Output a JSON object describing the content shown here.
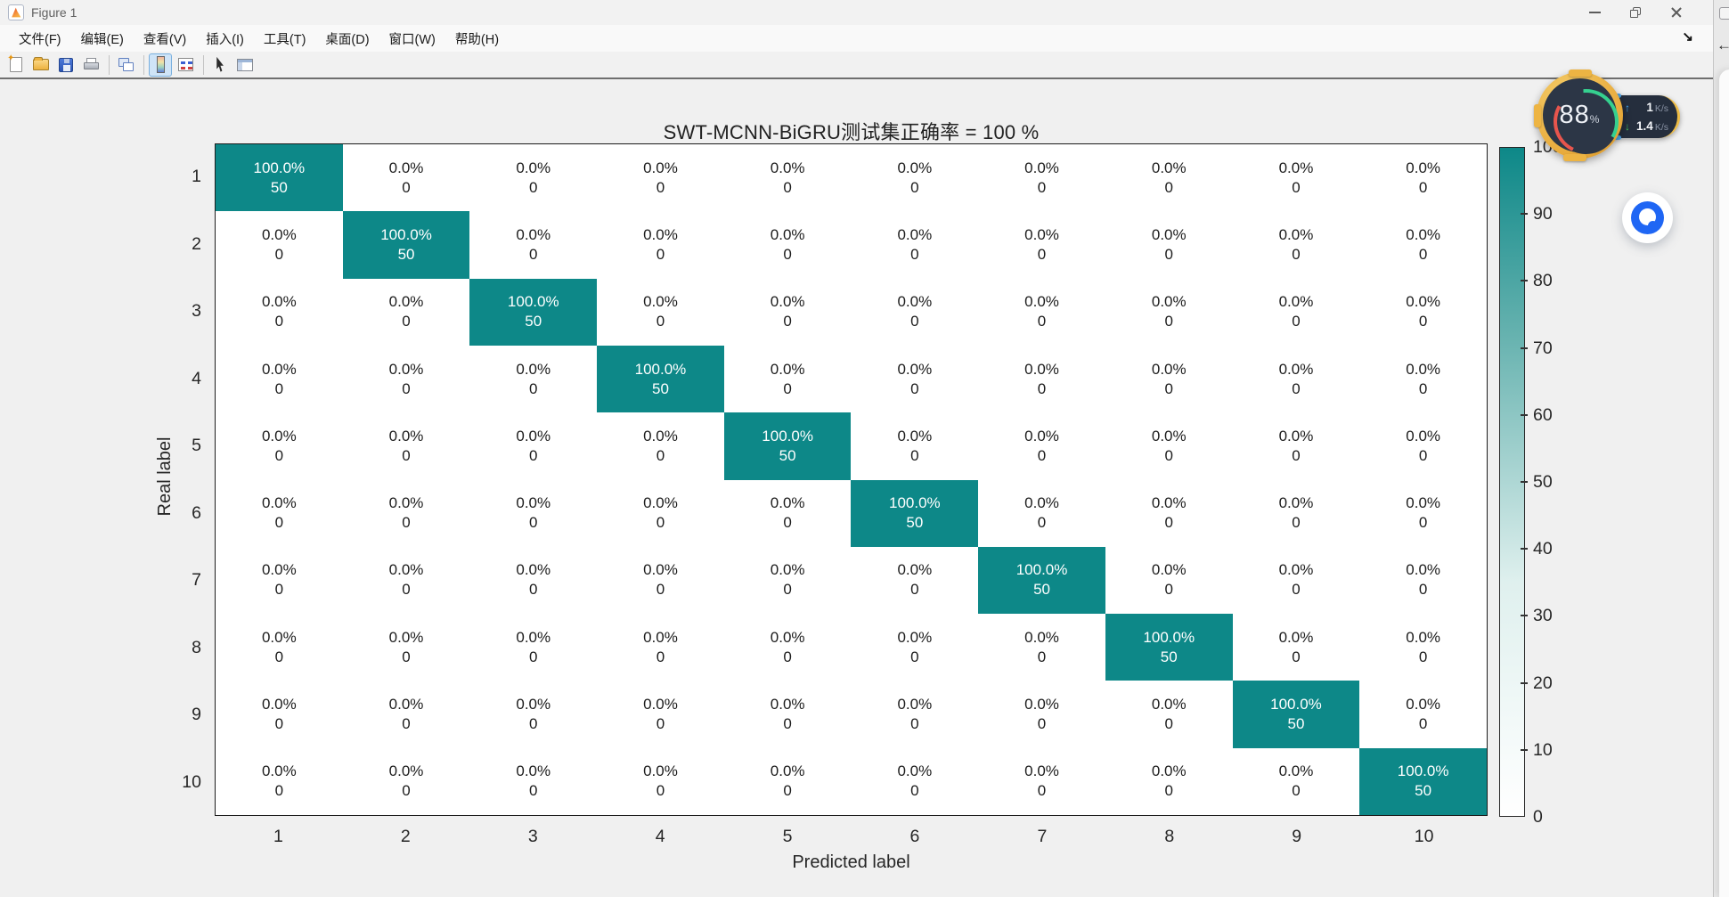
{
  "window": {
    "title": "Figure 1",
    "controls": {
      "minimize": "minimize",
      "restore": "restore",
      "close": "close"
    }
  },
  "menu": {
    "items": [
      "文件(F)",
      "编辑(E)",
      "查看(V)",
      "插入(I)",
      "工具(T)",
      "桌面(D)",
      "窗口(W)",
      "帮助(H)"
    ],
    "dock_arrow": "↘"
  },
  "toolbar": {
    "icons": [
      "new-figure",
      "open-file",
      "save-figure",
      "print-figure",
      "link-plot",
      "insert-colorbar",
      "insert-legend",
      "edit-plot",
      "property-inspector"
    ],
    "active_icon": "insert-colorbar"
  },
  "chart_data": {
    "type": "heatmap",
    "title": "SWT-MCNN-BiGRU测试集正确率 = 100 %",
    "xlabel": "Predicted label",
    "ylabel": "Real label",
    "x_ticks": [
      "1",
      "2",
      "3",
      "4",
      "5",
      "6",
      "7",
      "8",
      "9",
      "10"
    ],
    "y_ticks": [
      "1",
      "2",
      "3",
      "4",
      "5",
      "6",
      "7",
      "8",
      "9",
      "10"
    ],
    "percent_matrix": [
      [
        100,
        0,
        0,
        0,
        0,
        0,
        0,
        0,
        0,
        0
      ],
      [
        0,
        100,
        0,
        0,
        0,
        0,
        0,
        0,
        0,
        0
      ],
      [
        0,
        0,
        100,
        0,
        0,
        0,
        0,
        0,
        0,
        0
      ],
      [
        0,
        0,
        0,
        100,
        0,
        0,
        0,
        0,
        0,
        0
      ],
      [
        0,
        0,
        0,
        0,
        100,
        0,
        0,
        0,
        0,
        0
      ],
      [
        0,
        0,
        0,
        0,
        0,
        100,
        0,
        0,
        0,
        0
      ],
      [
        0,
        0,
        0,
        0,
        0,
        0,
        100,
        0,
        0,
        0
      ],
      [
        0,
        0,
        0,
        0,
        0,
        0,
        0,
        100,
        0,
        0
      ],
      [
        0,
        0,
        0,
        0,
        0,
        0,
        0,
        0,
        100,
        0
      ],
      [
        0,
        0,
        0,
        0,
        0,
        0,
        0,
        0,
        0,
        100
      ]
    ],
    "count_matrix": [
      [
        50,
        0,
        0,
        0,
        0,
        0,
        0,
        0,
        0,
        0
      ],
      [
        0,
        50,
        0,
        0,
        0,
        0,
        0,
        0,
        0,
        0
      ],
      [
        0,
        0,
        50,
        0,
        0,
        0,
        0,
        0,
        0,
        0
      ],
      [
        0,
        0,
        0,
        50,
        0,
        0,
        0,
        0,
        0,
        0
      ],
      [
        0,
        0,
        0,
        0,
        50,
        0,
        0,
        0,
        0,
        0
      ],
      [
        0,
        0,
        0,
        0,
        0,
        50,
        0,
        0,
        0,
        0
      ],
      [
        0,
        0,
        0,
        0,
        0,
        0,
        50,
        0,
        0,
        0
      ],
      [
        0,
        0,
        0,
        0,
        0,
        0,
        0,
        50,
        0,
        0
      ],
      [
        0,
        0,
        0,
        0,
        0,
        0,
        0,
        0,
        50,
        0
      ],
      [
        0,
        0,
        0,
        0,
        0,
        0,
        0,
        0,
        0,
        50
      ]
    ],
    "colorbar": {
      "ticks": [
        0,
        10,
        20,
        30,
        40,
        50,
        60,
        70,
        80,
        90,
        100
      ],
      "min_color": "#ffffff",
      "max_color": "#0d8888"
    },
    "diag_color": "#0d8888",
    "grid": false,
    "legend_position": "none"
  },
  "overlay": {
    "gauge": {
      "percent": "88",
      "suffix": "%"
    },
    "network": {
      "up_arrow": "↑",
      "up_value": "1",
      "up_unit": "K/s",
      "down_arrow": "↓",
      "down_value": "1.4",
      "down_unit": "K/s"
    },
    "quark_button": "quark-browser-launcher"
  },
  "right_edge": {
    "back_arrow": "←"
  },
  "colors": {
    "accent_teal": "#0d8888",
    "figure_bg": "#f0f0f0",
    "gauge_gold": "#edb443",
    "overlay_panel": "#252e3d",
    "up_blue": "#3fa9f5",
    "down_green": "#43c257",
    "quark_blue": "#1f66f4"
  }
}
